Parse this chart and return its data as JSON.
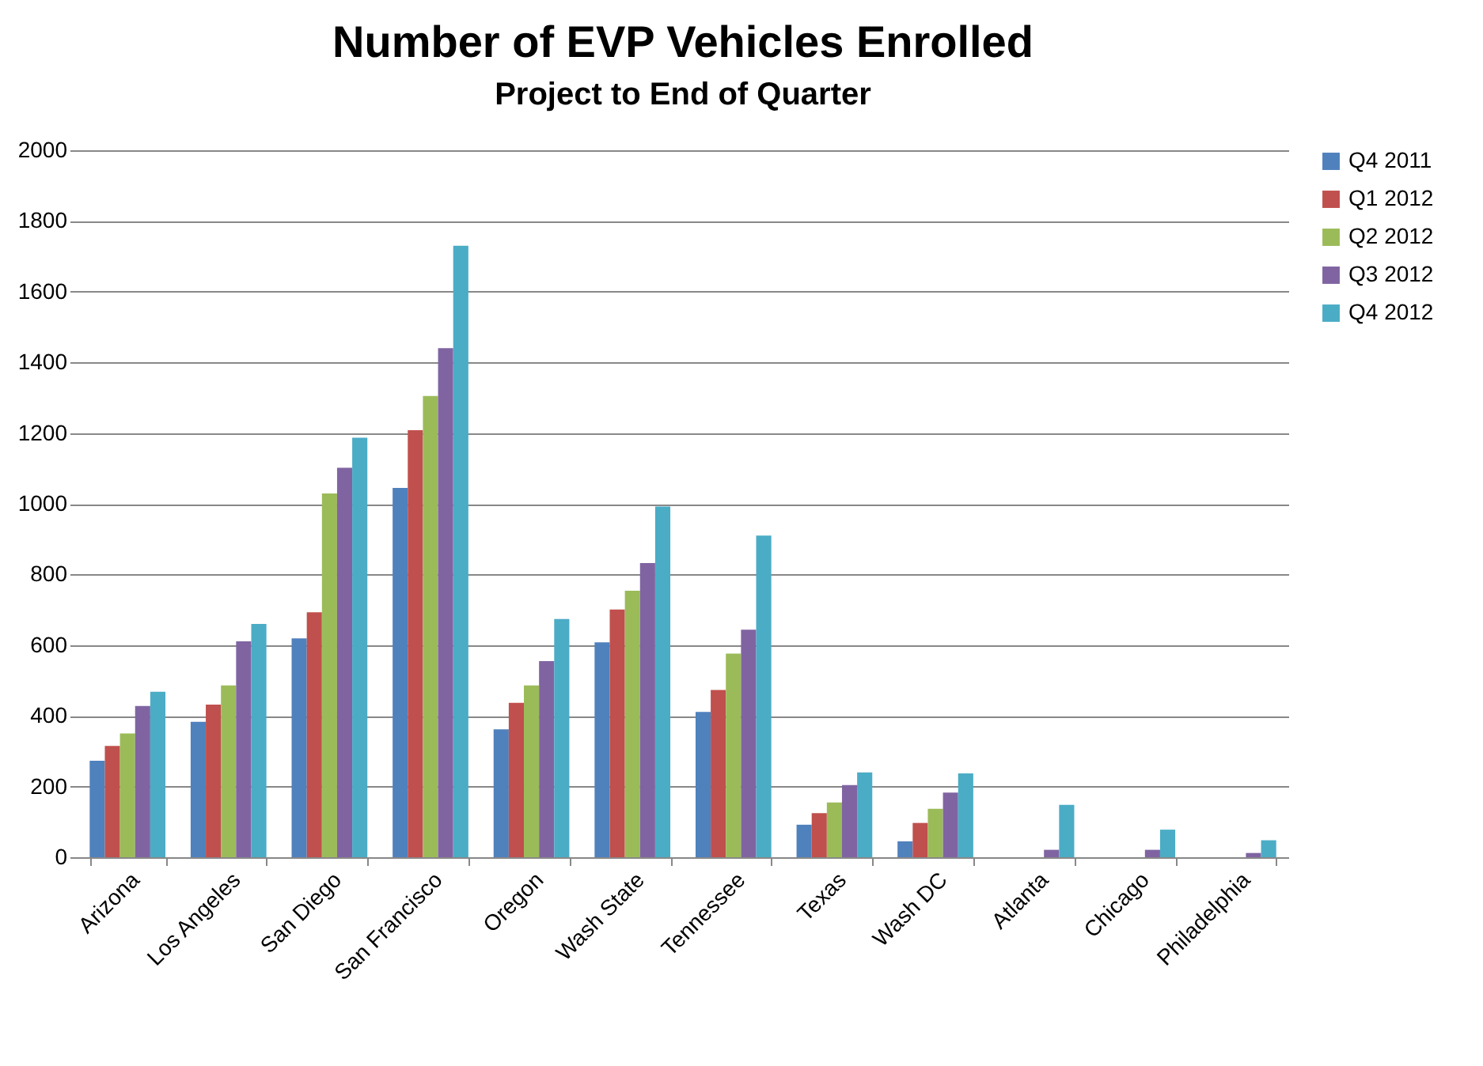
{
  "chart_data": {
    "type": "bar",
    "title": "Number of EVP Vehicles Enrolled",
    "subtitle": "Project to End of Quarter",
    "categories": [
      "Arizona",
      "Los Angeles",
      "San Diego",
      "San Francisco",
      "Oregon",
      "Wash State",
      "Tennessee",
      "Texas",
      "Wash DC",
      "Atlanta",
      "Chicago",
      "Philadelphia"
    ],
    "series": [
      {
        "name": "Q4 2011",
        "color": "#4f81bd",
        "values": [
          273,
          383,
          619,
          1045,
          362,
          608,
          411,
          92,
          45,
          0,
          0,
          0
        ]
      },
      {
        "name": "Q1 2012",
        "color": "#c0504d",
        "values": [
          315,
          432,
          693,
          1208,
          437,
          701,
          473,
          125,
          97,
          0,
          0,
          0
        ]
      },
      {
        "name": "Q2 2012",
        "color": "#9bbb59",
        "values": [
          350,
          486,
          1029,
          1305,
          486,
          754,
          576,
          155,
          137,
          0,
          0,
          0
        ]
      },
      {
        "name": "Q3 2012",
        "color": "#8064a2",
        "values": [
          428,
          611,
          1102,
          1440,
          555,
          832,
          644,
          204,
          183,
          21,
          21,
          12
        ]
      },
      {
        "name": "Q4 2012",
        "color": "#4bacc6",
        "values": [
          468,
          660,
          1187,
          1730,
          674,
          992,
          910,
          240,
          237,
          148,
          78,
          48
        ]
      }
    ],
    "ylim": [
      0,
      2000
    ],
    "yticks": [
      0,
      200,
      400,
      600,
      800,
      1000,
      1200,
      1400,
      1600,
      1800,
      2000
    ],
    "grid": "y",
    "legend": "right"
  }
}
